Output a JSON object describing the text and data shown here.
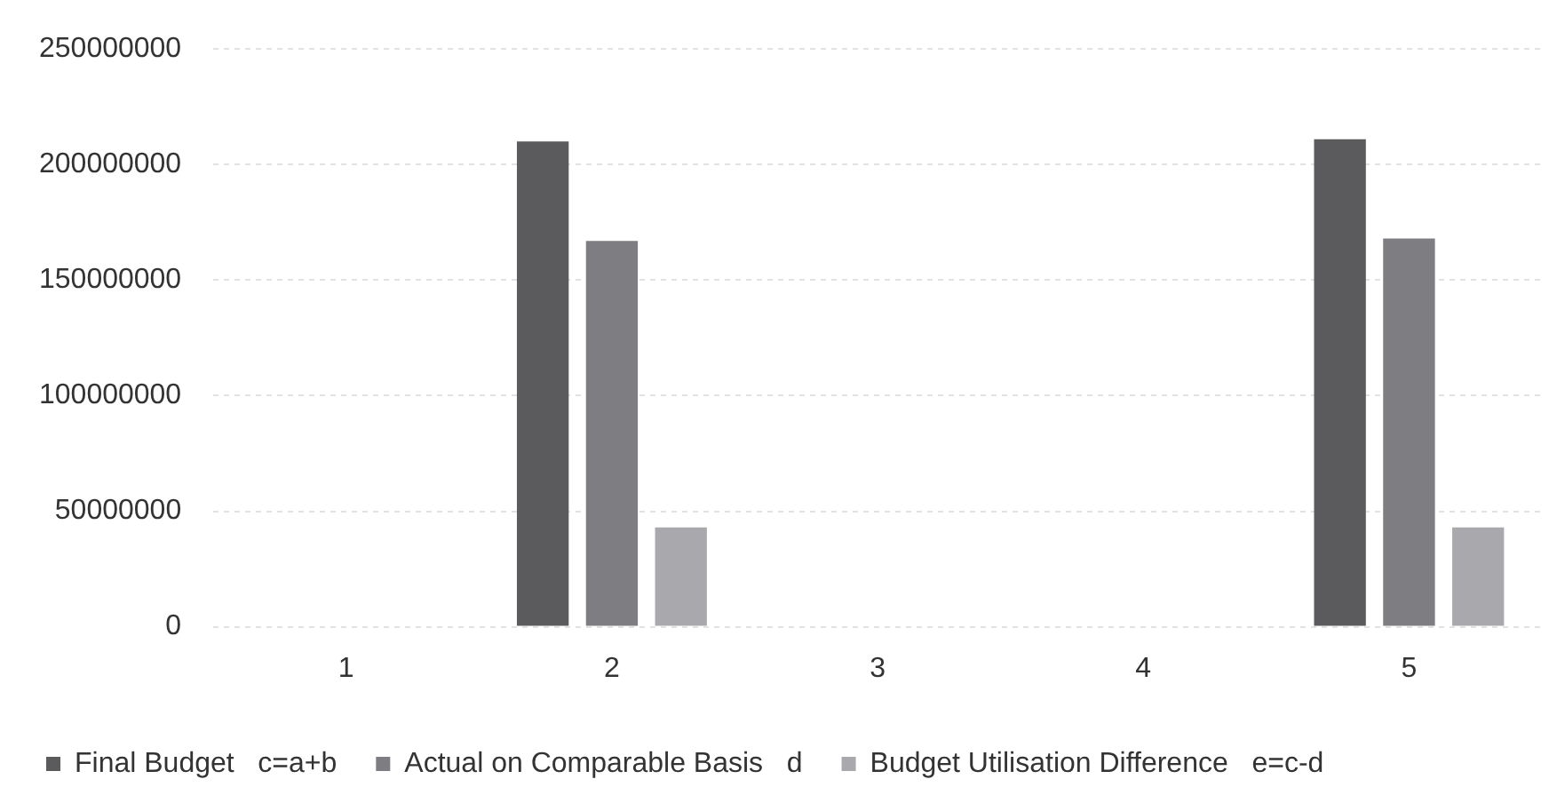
{
  "chart_data": {
    "type": "bar",
    "categories": [
      "1",
      "2",
      "3",
      "4",
      "5"
    ],
    "series": [
      {
        "name": "Final Budget   c=a+b",
        "color": "#5b5b5e",
        "values": [
          null,
          210000000,
          null,
          null,
          211000000
        ]
      },
      {
        "name": "Actual on Comparable Basis   d",
        "color": "#7e7e82",
        "values": [
          null,
          167000000,
          null,
          null,
          168000000
        ]
      },
      {
        "name": "Budget Utilisation Difference   e=c-d",
        "color": "#a9a9ad",
        "values": [
          null,
          43000000,
          null,
          null,
          43000000
        ]
      }
    ],
    "ylim": [
      0,
      250000000
    ],
    "yticks": [
      0,
      50000000,
      100000000,
      150000000,
      200000000,
      250000000
    ],
    "grid": "y",
    "legend": "bottom"
  }
}
